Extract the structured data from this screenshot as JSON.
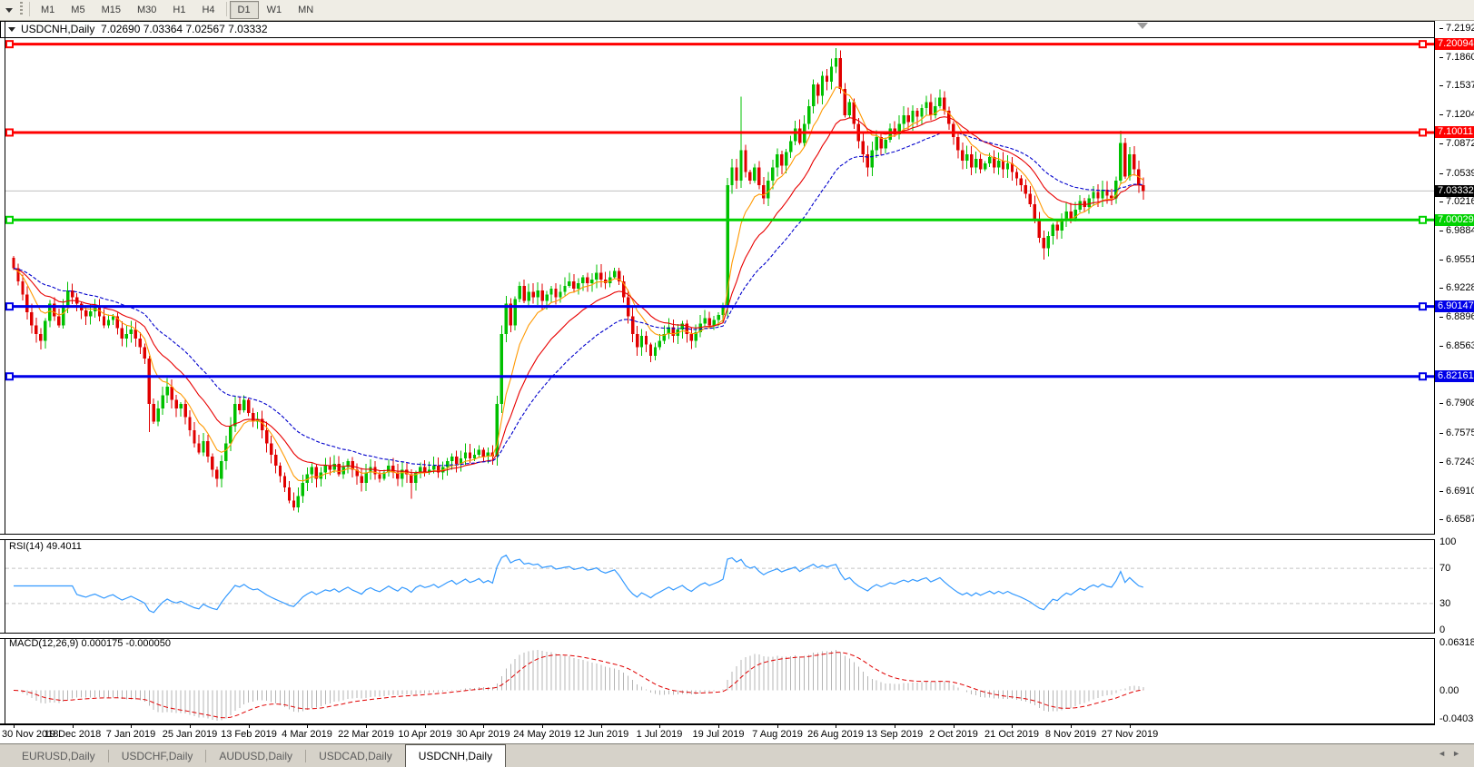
{
  "toolbar": {
    "timeframes": [
      "M1",
      "M5",
      "M15",
      "M30",
      "H1",
      "H4",
      "D1",
      "W1",
      "MN"
    ],
    "active_timeframe": "D1"
  },
  "chart": {
    "title": {
      "symbol": "USDCNH,Daily",
      "ohlc": "7.02690 7.03364 7.02567 7.03332"
    },
    "price_axis_ticks": [
      "7.21925",
      "7.18600",
      "7.15370",
      "7.12045",
      "7.08720",
      "7.05395",
      "7.02165",
      "6.98840",
      "6.95515",
      "6.92285",
      "6.88960",
      "6.85635",
      "6.79080",
      "6.75755",
      "6.72430",
      "6.69105",
      "6.65875"
    ],
    "current_price": {
      "value": "7.03332",
      "line_color": "#C0C0C0",
      "badge_bg": "#000000"
    },
    "hlines": [
      {
        "price": "7.20094",
        "color": "#FF0000"
      },
      {
        "price": "7.10011",
        "color": "#FF0000"
      },
      {
        "price": "7.00029",
        "color": "#00D200"
      },
      {
        "price": "6.90147",
        "color": "#0000E8"
      },
      {
        "price": "6.82161",
        "color": "#0000E8"
      }
    ],
    "up_color": "#00C000",
    "down_color": "#E00000"
  },
  "rsi_panel": {
    "label": "RSI(14) 49.4011",
    "axis_labels": [
      "100",
      "70",
      "30",
      "0"
    ],
    "upper_level": 70,
    "lower_level": 30,
    "line_color": "#3399FF"
  },
  "macd_panel": {
    "label": "MACD(12,26,9) 0.000175 -0.000050",
    "axis_labels": [
      "0.063184",
      "0.00",
      "-0.040355"
    ],
    "axis_max": 0.063184,
    "axis_min": -0.040355,
    "histogram_color": "#B4B4B4",
    "signal_color": "#E00000"
  },
  "dates": [
    "30 Nov 2018",
    "19 Dec 2018",
    "7 Jan 2019",
    "25 Jan 2019",
    "13 Feb 2019",
    "4 Mar 2019",
    "22 Mar 2019",
    "10 Apr 2019",
    "30 Apr 2019",
    "24 May 2019",
    "12 Jun 2019",
    "1 Jul 2019",
    "19 Jul 2019",
    "7 Aug 2019",
    "26 Aug 2019",
    "13 Sep 2019",
    "2 Oct 2019",
    "21 Oct 2019",
    "8 Nov 2019",
    "27 Nov 2019"
  ],
  "tabs": {
    "items": [
      "EURUSD,Daily",
      "USDCHF,Daily",
      "AUDUSD,Daily",
      "USDCAD,Daily",
      "USDCNH,Daily"
    ],
    "active": "USDCNH,Daily",
    "separator": "|",
    "nav_left": "◄",
    "nav_right": "►"
  },
  "chart_data": {
    "type": "candlestick",
    "symbol": "USDCNH",
    "timeframe": "Daily",
    "x_labels": [
      "30 Nov 2018",
      "19 Dec 2018",
      "7 Jan 2019",
      "25 Jan 2019",
      "13 Feb 2019",
      "4 Mar 2019",
      "22 Mar 2019",
      "10 Apr 2019",
      "30 Apr 2019",
      "24 May 2019",
      "12 Jun 2019",
      "1 Jul 2019",
      "19 Jul 2019",
      "7 Aug 2019",
      "26 Aug 2019",
      "13 Sep 2019",
      "2 Oct 2019",
      "21 Oct 2019",
      "8 Nov 2019",
      "27 Nov 2019"
    ],
    "candles_per_label": 13,
    "ylim": [
      6.65875,
      7.21925
    ],
    "closes": [
      6.945,
      6.93,
      6.915,
      6.895,
      6.88,
      6.87,
      6.862,
      6.885,
      6.905,
      6.89,
      6.88,
      6.9,
      6.92,
      6.912,
      6.905,
      6.897,
      6.89,
      6.896,
      6.9,
      6.89,
      6.88,
      6.886,
      6.89,
      6.877,
      6.865,
      6.87,
      6.875,
      6.865,
      6.855,
      6.842,
      6.79,
      6.77,
      6.785,
      6.8,
      6.81,
      6.795,
      6.785,
      6.79,
      6.775,
      6.76,
      6.745,
      6.735,
      6.748,
      6.73,
      6.715,
      6.705,
      6.725,
      6.745,
      6.765,
      6.79,
      6.783,
      6.795,
      6.78,
      6.77,
      6.773,
      6.76,
      6.745,
      6.732,
      6.72,
      6.708,
      6.695,
      6.68,
      6.672,
      6.685,
      6.7,
      6.71,
      6.718,
      6.705,
      6.712,
      6.72,
      6.715,
      6.722,
      6.71,
      6.718,
      6.725,
      6.715,
      6.708,
      6.7,
      6.712,
      6.718,
      6.71,
      6.705,
      6.712,
      6.72,
      6.712,
      6.705,
      6.715,
      6.71,
      6.7,
      6.712,
      6.718,
      6.712,
      6.715,
      6.72,
      6.712,
      6.718,
      6.725,
      6.73,
      6.722,
      6.728,
      6.735,
      6.728,
      6.732,
      6.738,
      6.73,
      6.735,
      6.73,
      6.79,
      6.87,
      6.905,
      6.88,
      6.91,
      6.925,
      6.908,
      6.918,
      6.912,
      6.92,
      6.908,
      6.915,
      6.922,
      6.912,
      6.918,
      6.925,
      6.93,
      6.922,
      6.928,
      6.935,
      6.928,
      6.932,
      6.94,
      6.932,
      6.928,
      6.935,
      6.942,
      6.93,
      6.912,
      6.89,
      6.87,
      6.855,
      6.868,
      6.858,
      6.845,
      6.855,
      6.862,
      6.87,
      6.878,
      6.868,
      6.875,
      6.882,
      6.87,
      6.862,
      6.872,
      6.882,
      6.888,
      6.88,
      6.886,
      6.892,
      6.9,
      7.04,
      7.06,
      7.045,
      7.08,
      7.055,
      7.045,
      7.06,
      7.04,
      7.025,
      7.045,
      7.06,
      7.075,
      7.062,
      7.078,
      7.09,
      7.105,
      7.088,
      7.11,
      7.13,
      7.155,
      7.142,
      7.165,
      7.158,
      7.175,
      7.185,
      7.15,
      7.12,
      7.135,
      7.11,
      7.09,
      7.075,
      7.06,
      7.08,
      7.095,
      7.082,
      7.092,
      7.105,
      7.098,
      7.11,
      7.12,
      7.112,
      7.125,
      7.118,
      7.128,
      7.135,
      7.12,
      7.13,
      7.14,
      7.125,
      7.11,
      7.095,
      7.08,
      7.068,
      7.075,
      7.06,
      7.07,
      7.058,
      7.065,
      7.072,
      7.06,
      7.068,
      7.058,
      7.065,
      7.055,
      7.048,
      7.04,
      7.03,
      7.018,
      7.0,
      6.98,
      6.968,
      6.982,
      6.995,
      6.988,
      7.0,
      7.01,
      7.002,
      7.012,
      7.022,
      7.015,
      7.025,
      7.032,
      7.025,
      7.035,
      7.028,
      7.025,
      7.045,
      7.088,
      7.05,
      7.075,
      7.058,
      7.04,
      7.0333
    ],
    "wick_overrides": {
      "30": [
        null,
        6.758
      ],
      "88": [
        null,
        6.682
      ],
      "107": [
        null,
        6.72
      ],
      "161": [
        7.141,
        null
      ],
      "182": [
        7.1965,
        null
      ],
      "228": [
        null,
        6.9551
      ],
      "245": [
        7.102,
        null
      ]
    },
    "moving_averages": [
      {
        "name": "fast",
        "period": 8,
        "color": "#FF9900",
        "style": "solid"
      },
      {
        "name": "medium",
        "period": 18,
        "color": "#E80000",
        "style": "solid"
      },
      {
        "name": "slow",
        "period": 34,
        "color": "#0000CC",
        "style": "dashed"
      }
    ],
    "hlines": [
      7.20094,
      7.10011,
      7.00029,
      6.90147,
      6.82161
    ],
    "last_price": 7.03332,
    "rsi": {
      "period": 14,
      "current": 49.4011,
      "levels": [
        100,
        70,
        30,
        0
      ]
    },
    "macd": {
      "fast": 12,
      "slow": 26,
      "signal": 9,
      "current_main": 0.000175,
      "current_signal": -5e-05,
      "ymax": 0.063184,
      "ymin": -0.040355
    }
  }
}
